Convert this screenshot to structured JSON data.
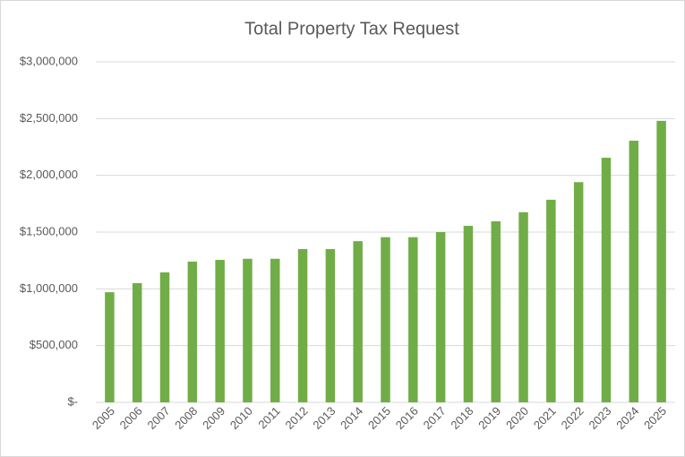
{
  "chart_data": {
    "type": "bar",
    "title": "Total Property Tax Request",
    "categories": [
      "2005",
      "2006",
      "2007",
      "2008",
      "2009",
      "2010",
      "2011",
      "2012",
      "2013",
      "2014",
      "2015",
      "2016",
      "2017",
      "2018",
      "2019",
      "2020",
      "2021",
      "2022",
      "2023",
      "2024",
      "2025"
    ],
    "values": [
      970000,
      1050000,
      1145000,
      1240000,
      1255000,
      1265000,
      1265000,
      1350000,
      1350000,
      1420000,
      1455000,
      1455000,
      1500000,
      1555000,
      1595000,
      1675000,
      1785000,
      1940000,
      2155000,
      2305000,
      2480000
    ],
    "color": "#70ad47",
    "ylim": [
      0,
      3000000
    ],
    "yticks": [
      {
        "value": 0,
        "label": "$-"
      },
      {
        "value": 500000,
        "label": "$500,000"
      },
      {
        "value": 1000000,
        "label": "$1,000,000"
      },
      {
        "value": 1500000,
        "label": "$1,500,000"
      },
      {
        "value": 2000000,
        "label": "$2,000,000"
      },
      {
        "value": 2500000,
        "label": "$2,500,000"
      },
      {
        "value": 3000000,
        "label": "$3,000,000"
      }
    ],
    "grid": true
  }
}
